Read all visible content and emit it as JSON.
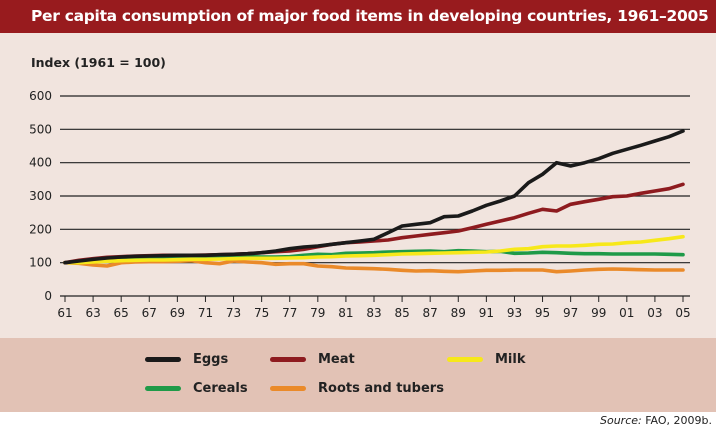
{
  "title": "Per capita consumption of major food items in developing countries, 1961–2005",
  "source_label": "Source:",
  "source_text": " FAO, 2009b.",
  "chart_data": {
    "type": "line",
    "title": "Per capita consumption of major food items in developing countries, 1961–2005",
    "ylabel": "Index (1961 = 100)",
    "xlabel": "",
    "ylim": [
      0,
      600
    ],
    "yticks": [
      0,
      100,
      200,
      300,
      400,
      500,
      600
    ],
    "xticklabels": [
      "61",
      "63",
      "65",
      "67",
      "69",
      "71",
      "73",
      "75",
      "77",
      "79",
      "81",
      "83",
      "85",
      "87",
      "89",
      "91",
      "93",
      "95",
      "97",
      "99",
      "01",
      "03",
      "05"
    ],
    "x": [
      1961,
      1962,
      1963,
      1964,
      1965,
      1966,
      1967,
      1968,
      1969,
      1970,
      1971,
      1972,
      1973,
      1974,
      1975,
      1976,
      1977,
      1978,
      1979,
      1980,
      1981,
      1982,
      1983,
      1984,
      1985,
      1986,
      1987,
      1988,
      1989,
      1990,
      1991,
      1992,
      1993,
      1994,
      1995,
      1996,
      1997,
      1998,
      1999,
      2000,
      2001,
      2002,
      2003,
      2004,
      2005
    ],
    "grid": true,
    "legend_position": "bottom",
    "series": [
      {
        "name": "Eggs",
        "color": "#1a1a1a",
        "values": [
          100,
          105,
          110,
          114,
          117,
          119,
          120,
          121,
          122,
          122,
          122,
          124,
          125,
          127,
          130,
          135,
          142,
          147,
          150,
          155,
          160,
          165,
          170,
          190,
          210,
          215,
          220,
          238,
          240,
          255,
          272,
          285,
          300,
          340,
          365,
          400,
          390,
          400,
          412,
          428,
          440,
          452,
          465,
          478,
          495
        ]
      },
      {
        "name": "Meat",
        "color": "#8e1b1f",
        "values": [
          100,
          107,
          112,
          116,
          118,
          120,
          121,
          122,
          122,
          122,
          123,
          124,
          125,
          127,
          130,
          133,
          135,
          140,
          148,
          155,
          160,
          162,
          165,
          168,
          175,
          180,
          185,
          190,
          195,
          205,
          215,
          225,
          235,
          248,
          260,
          255,
          275,
          283,
          290,
          298,
          300,
          308,
          315,
          322,
          335
        ]
      },
      {
        "name": "Milk",
        "color": "#f7e81a",
        "values": [
          100,
          100,
          102,
          104,
          106,
          107,
          108,
          108,
          109,
          110,
          110,
          111,
          112,
          113,
          113,
          113,
          114,
          115,
          117,
          118,
          120,
          121,
          122,
          124,
          126,
          127,
          128,
          129,
          130,
          131,
          132,
          135,
          140,
          142,
          148,
          150,
          150,
          152,
          155,
          156,
          160,
          162,
          167,
          172,
          178
        ]
      },
      {
        "name": "Cereals",
        "color": "#1f9a48",
        "values": [
          100,
          102,
          105,
          108,
          112,
          113,
          114,
          115,
          116,
          117,
          117,
          117,
          118,
          118,
          117,
          117,
          118,
          122,
          125,
          124,
          128,
          129,
          130,
          132,
          133,
          134,
          135,
          133,
          136,
          135,
          133,
          134,
          128,
          129,
          131,
          130,
          128,
          127,
          127,
          126,
          126,
          126,
          126,
          125,
          124
        ]
      },
      {
        "name": "Roots and tubers",
        "color": "#ea8a2a",
        "values": [
          100,
          98,
          93,
          90,
          100,
          102,
          103,
          103,
          104,
          106,
          100,
          97,
          105,
          102,
          100,
          95,
          97,
          97,
          90,
          88,
          84,
          83,
          82,
          80,
          77,
          75,
          76,
          74,
          73,
          75,
          77,
          77,
          78,
          78,
          78,
          73,
          75,
          78,
          80,
          81,
          80,
          79,
          78,
          78,
          78
        ]
      }
    ]
  }
}
